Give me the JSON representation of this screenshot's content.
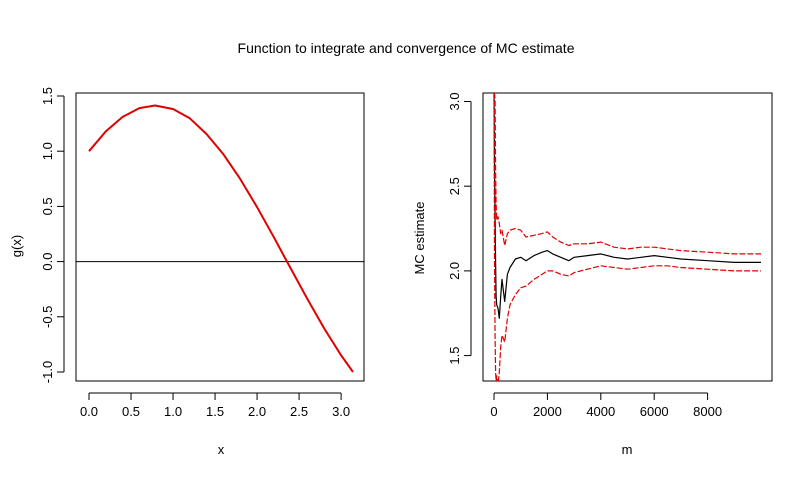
{
  "title": "Function to integrate and convergence of MC estimate",
  "colors": {
    "curve": "#e00000",
    "estimate": "#000000",
    "band": "#e00000",
    "refline": "#000000"
  },
  "chart_data": [
    {
      "type": "line",
      "title": "",
      "xlabel": "x",
      "ylabel": "g(x)",
      "xlim": [
        0,
        3.14159
      ],
      "ylim": [
        -1.0,
        1.5
      ],
      "xticks": [
        "0.0",
        "0.5",
        "1.0",
        "1.5",
        "2.0",
        "2.5",
        "3.0"
      ],
      "yticks": [
        "-1.0",
        "-0.5",
        "0.0",
        "0.5",
        "1.0",
        "1.5"
      ],
      "hline": 0,
      "series": [
        {
          "x": [
            0.0,
            0.2,
            0.4,
            0.6,
            0.785,
            1.0,
            1.2,
            1.4,
            1.6,
            1.8,
            2.0,
            2.2,
            2.356,
            2.6,
            2.8,
            3.0,
            3.1416
          ],
          "y": [
            1.0,
            1.179,
            1.311,
            1.39,
            1.414,
            1.382,
            1.298,
            1.155,
            0.971,
            0.747,
            0.493,
            0.22,
            0.0,
            -0.341,
            -0.607,
            -0.849,
            -1.0
          ]
        }
      ]
    },
    {
      "type": "line",
      "title": "",
      "xlabel": "m",
      "ylabel": "MC estimate",
      "xlim": [
        0,
        10000
      ],
      "ylim": [
        1.35,
        3.05
      ],
      "xticks": [
        "0",
        "2000",
        "4000",
        "6000",
        "8000"
      ],
      "yticks": [
        "1.5",
        "2.0",
        "2.5",
        "3.0"
      ],
      "series": [
        {
          "role": "estimate",
          "x": [
            1,
            20,
            40,
            60,
            80,
            100,
            150,
            200,
            250,
            300,
            400,
            500,
            600,
            800,
            1000,
            1200,
            1500,
            1800,
            2000,
            2200,
            2500,
            2800,
            3000,
            3500,
            4000,
            4500,
            5000,
            5500,
            6000,
            6500,
            7000,
            8000,
            9000,
            10000
          ],
          "y": [
            3.05,
            2.6,
            2.3,
            2.05,
            1.85,
            1.8,
            1.78,
            1.72,
            1.85,
            1.95,
            1.82,
            1.98,
            2.02,
            2.07,
            2.08,
            2.06,
            2.09,
            2.11,
            2.12,
            2.1,
            2.08,
            2.06,
            2.08,
            2.09,
            2.1,
            2.08,
            2.07,
            2.08,
            2.09,
            2.08,
            2.07,
            2.06,
            2.05,
            2.05
          ]
        },
        {
          "role": "upper",
          "x": [
            1,
            20,
            40,
            60,
            80,
            100,
            150,
            200,
            250,
            300,
            400,
            500,
            600,
            800,
            1000,
            1200,
            1500,
            1800,
            2000,
            2200,
            2500,
            2800,
            3000,
            3500,
            4000,
            4500,
            5000,
            5500,
            6000,
            6500,
            7000,
            8000,
            9000,
            10000
          ],
          "y": [
            3.05,
            3.05,
            3.0,
            2.6,
            2.4,
            2.3,
            2.32,
            2.28,
            2.22,
            2.24,
            2.15,
            2.22,
            2.24,
            2.25,
            2.24,
            2.2,
            2.21,
            2.22,
            2.23,
            2.2,
            2.17,
            2.15,
            2.16,
            2.16,
            2.17,
            2.14,
            2.13,
            2.14,
            2.14,
            2.13,
            2.12,
            2.11,
            2.1,
            2.1
          ]
        },
        {
          "role": "lower",
          "x": [
            1,
            20,
            40,
            60,
            80,
            100,
            150,
            200,
            250,
            300,
            400,
            500,
            600,
            800,
            1000,
            1200,
            1500,
            1800,
            2000,
            2200,
            2500,
            2800,
            3000,
            3500,
            4000,
            4500,
            5000,
            5500,
            6000,
            6500,
            7000,
            8000,
            9000,
            10000
          ],
          "y": [
            3.05,
            2.1,
            1.6,
            1.4,
            1.35,
            1.38,
            1.33,
            1.4,
            1.55,
            1.62,
            1.58,
            1.72,
            1.8,
            1.86,
            1.9,
            1.91,
            1.95,
            1.98,
            2.0,
            2.0,
            1.98,
            1.97,
            1.99,
            2.01,
            2.03,
            2.02,
            2.01,
            2.02,
            2.03,
            2.03,
            2.02,
            2.01,
            2.0,
            2.0
          ]
        }
      ]
    }
  ]
}
